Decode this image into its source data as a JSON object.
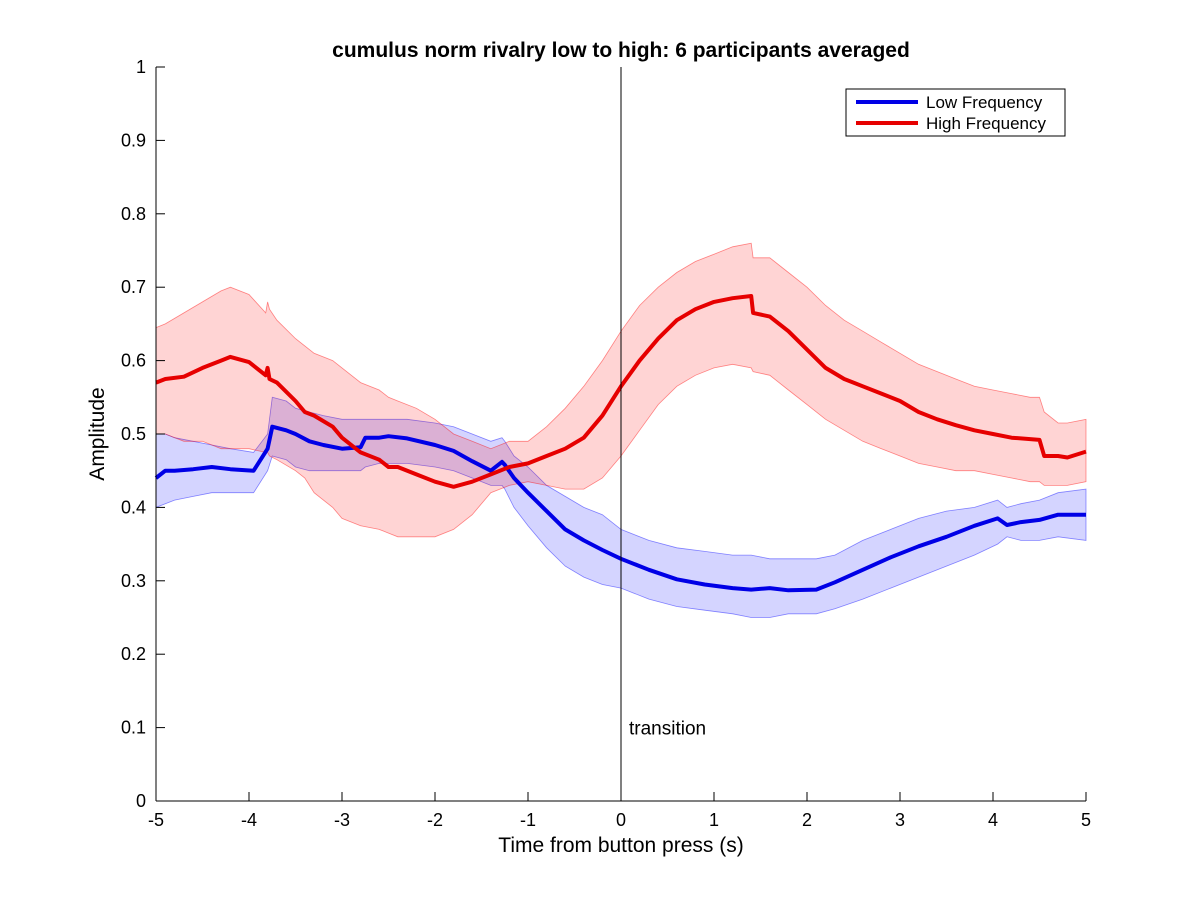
{
  "chart_data": {
    "type": "line",
    "title": "cumulus norm rivalry low to high: 6 participants averaged",
    "xlabel": "Time from button press (s)",
    "ylabel": "Amplitude",
    "xlim": [
      -5,
      5
    ],
    "ylim": [
      0,
      1
    ],
    "xticks": [
      -5,
      -4,
      -3,
      -2,
      -1,
      0,
      1,
      2,
      3,
      4,
      5
    ],
    "yticks": [
      0,
      0.1,
      0.2,
      0.3,
      0.4,
      0.5,
      0.6,
      0.7,
      0.8,
      0.9,
      1
    ],
    "grid": false,
    "legend_position": "top-right",
    "vline": {
      "x": 0,
      "label": "transition",
      "label_y": 0.1
    },
    "series": [
      {
        "name": "Low Frequency",
        "color": "#0000e6",
        "band_color": "#0000ff",
        "x": [
          -5,
          -4.9,
          -4.8,
          -4.6,
          -4.4,
          -4.2,
          -3.95,
          -3.8,
          -3.75,
          -3.6,
          -3.5,
          -3.35,
          -3.2,
          -3.0,
          -2.8,
          -2.75,
          -2.6,
          -2.5,
          -2.3,
          -2.0,
          -1.8,
          -1.6,
          -1.4,
          -1.28,
          -1.25,
          -1.15,
          -1.0,
          -0.8,
          -0.6,
          -0.4,
          -0.2,
          0,
          0.3,
          0.6,
          0.9,
          1.2,
          1.4,
          1.6,
          1.8,
          2.1,
          2.3,
          2.6,
          2.9,
          3.2,
          3.5,
          3.8,
          4.05,
          4.15,
          4.3,
          4.5,
          4.7,
          5
        ],
        "values": [
          0.44,
          0.45,
          0.45,
          0.452,
          0.455,
          0.452,
          0.45,
          0.48,
          0.51,
          0.505,
          0.5,
          0.49,
          0.485,
          0.48,
          0.482,
          0.495,
          0.495,
          0.497,
          0.494,
          0.485,
          0.477,
          0.463,
          0.45,
          0.462,
          0.458,
          0.44,
          0.42,
          0.395,
          0.37,
          0.355,
          0.342,
          0.33,
          0.315,
          0.302,
          0.295,
          0.29,
          0.288,
          0.29,
          0.287,
          0.288,
          0.298,
          0.315,
          0.332,
          0.347,
          0.36,
          0.375,
          0.385,
          0.376,
          0.38,
          0.383,
          0.39,
          0.39
        ],
        "lower": [
          0.4,
          0.405,
          0.41,
          0.415,
          0.42,
          0.42,
          0.42,
          0.45,
          0.47,
          0.465,
          0.455,
          0.45,
          0.45,
          0.45,
          0.45,
          0.455,
          0.46,
          0.46,
          0.46,
          0.455,
          0.45,
          0.44,
          0.43,
          0.43,
          0.425,
          0.4,
          0.375,
          0.345,
          0.32,
          0.305,
          0.295,
          0.29,
          0.275,
          0.265,
          0.26,
          0.255,
          0.25,
          0.25,
          0.255,
          0.255,
          0.262,
          0.275,
          0.29,
          0.305,
          0.32,
          0.335,
          0.35,
          0.36,
          0.355,
          0.355,
          0.36,
          0.355
        ],
        "upper": [
          0.5,
          0.5,
          0.495,
          0.49,
          0.485,
          0.48,
          0.475,
          0.5,
          0.55,
          0.545,
          0.535,
          0.53,
          0.525,
          0.52,
          0.52,
          0.52,
          0.52,
          0.52,
          0.52,
          0.515,
          0.51,
          0.5,
          0.49,
          0.495,
          0.49,
          0.47,
          0.455,
          0.43,
          0.415,
          0.4,
          0.39,
          0.37,
          0.355,
          0.345,
          0.34,
          0.335,
          0.335,
          0.33,
          0.33,
          0.33,
          0.335,
          0.355,
          0.37,
          0.385,
          0.395,
          0.4,
          0.41,
          0.4,
          0.405,
          0.41,
          0.42,
          0.425
        ]
      },
      {
        "name": "High Frequency",
        "color": "#e60000",
        "band_color": "#ff0000",
        "x": [
          -5,
          -4.9,
          -4.7,
          -4.5,
          -4.3,
          -4.2,
          -4.0,
          -3.82,
          -3.8,
          -3.78,
          -3.7,
          -3.5,
          -3.4,
          -3.3,
          -3.1,
          -3.0,
          -2.8,
          -2.6,
          -2.5,
          -2.4,
          -2.2,
          -2.0,
          -1.8,
          -1.6,
          -1.4,
          -1.2,
          -1.0,
          -0.8,
          -0.6,
          -0.4,
          -0.2,
          0,
          0.2,
          0.4,
          0.6,
          0.8,
          1.0,
          1.2,
          1.4,
          1.42,
          1.6,
          1.8,
          2.0,
          2.2,
          2.4,
          2.6,
          2.8,
          3.0,
          3.2,
          3.4,
          3.6,
          3.8,
          4.0,
          4.2,
          4.4,
          4.5,
          4.55,
          4.7,
          4.8,
          5
        ],
        "values": [
          0.57,
          0.575,
          0.578,
          0.59,
          0.6,
          0.605,
          0.598,
          0.58,
          0.59,
          0.575,
          0.57,
          0.545,
          0.53,
          0.525,
          0.51,
          0.495,
          0.475,
          0.465,
          0.455,
          0.455,
          0.445,
          0.435,
          0.428,
          0.435,
          0.445,
          0.455,
          0.46,
          0.47,
          0.48,
          0.495,
          0.525,
          0.565,
          0.6,
          0.63,
          0.655,
          0.67,
          0.68,
          0.685,
          0.688,
          0.665,
          0.66,
          0.64,
          0.615,
          0.59,
          0.575,
          0.565,
          0.555,
          0.545,
          0.53,
          0.52,
          0.512,
          0.505,
          0.5,
          0.495,
          0.493,
          0.492,
          0.47,
          0.47,
          0.468,
          0.476
        ],
        "lower": [
          0.5,
          0.5,
          0.49,
          0.49,
          0.48,
          0.48,
          0.48,
          0.475,
          0.475,
          0.47,
          0.465,
          0.45,
          0.44,
          0.42,
          0.4,
          0.385,
          0.375,
          0.37,
          0.365,
          0.36,
          0.36,
          0.36,
          0.37,
          0.39,
          0.42,
          0.43,
          0.435,
          0.43,
          0.425,
          0.425,
          0.44,
          0.47,
          0.505,
          0.54,
          0.565,
          0.58,
          0.59,
          0.595,
          0.59,
          0.585,
          0.58,
          0.56,
          0.54,
          0.52,
          0.505,
          0.49,
          0.48,
          0.47,
          0.46,
          0.455,
          0.45,
          0.45,
          0.445,
          0.44,
          0.435,
          0.435,
          0.43,
          0.43,
          0.43,
          0.435
        ],
        "upper": [
          0.645,
          0.65,
          0.665,
          0.68,
          0.695,
          0.7,
          0.69,
          0.665,
          0.68,
          0.67,
          0.655,
          0.63,
          0.62,
          0.61,
          0.6,
          0.59,
          0.57,
          0.56,
          0.55,
          0.545,
          0.535,
          0.52,
          0.5,
          0.49,
          0.48,
          0.49,
          0.49,
          0.51,
          0.535,
          0.565,
          0.6,
          0.64,
          0.675,
          0.7,
          0.72,
          0.735,
          0.745,
          0.755,
          0.76,
          0.74,
          0.74,
          0.72,
          0.7,
          0.675,
          0.655,
          0.64,
          0.625,
          0.61,
          0.595,
          0.585,
          0.575,
          0.565,
          0.56,
          0.555,
          0.55,
          0.55,
          0.53,
          0.515,
          0.515,
          0.52
        ]
      }
    ]
  }
}
